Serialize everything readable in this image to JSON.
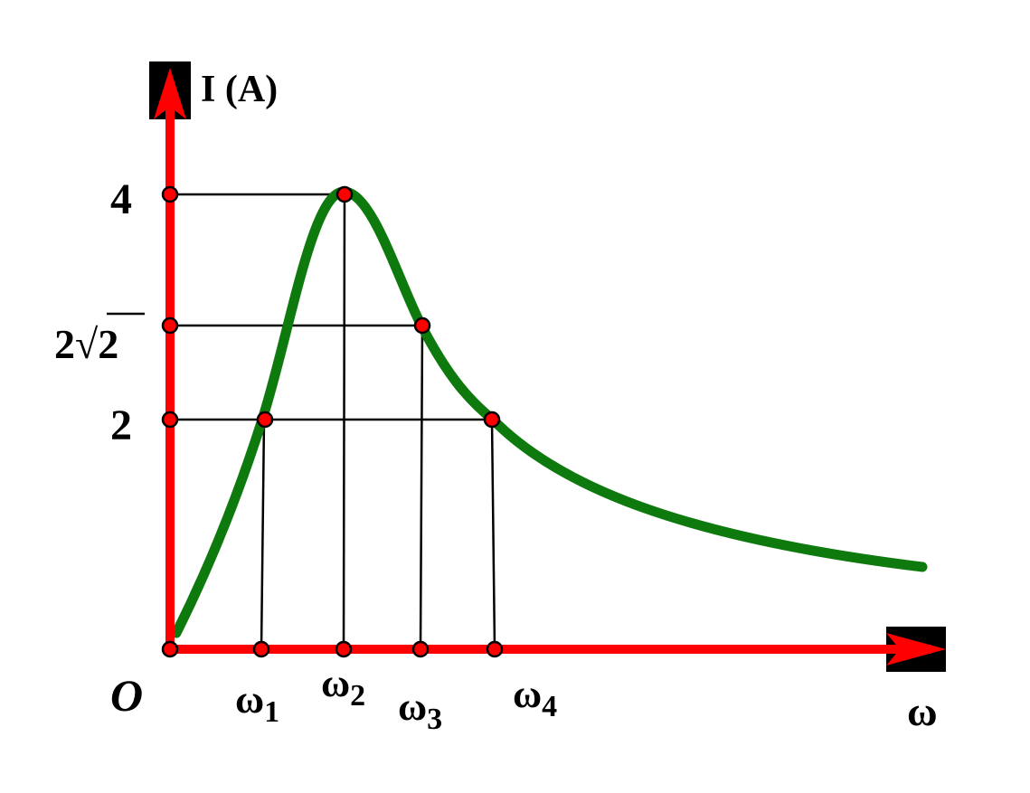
{
  "axes": {
    "y_label": "I (A)",
    "x_label": "ω",
    "origin": "O"
  },
  "y_marks": [
    "4",
    "2√2",
    "2"
  ],
  "x_marks": [
    {
      "symbol": "ω",
      "index": "1"
    },
    {
      "symbol": "ω",
      "index": "2"
    },
    {
      "symbol": "ω",
      "index": "3"
    },
    {
      "symbol": "ω",
      "index": "4"
    }
  ]
}
